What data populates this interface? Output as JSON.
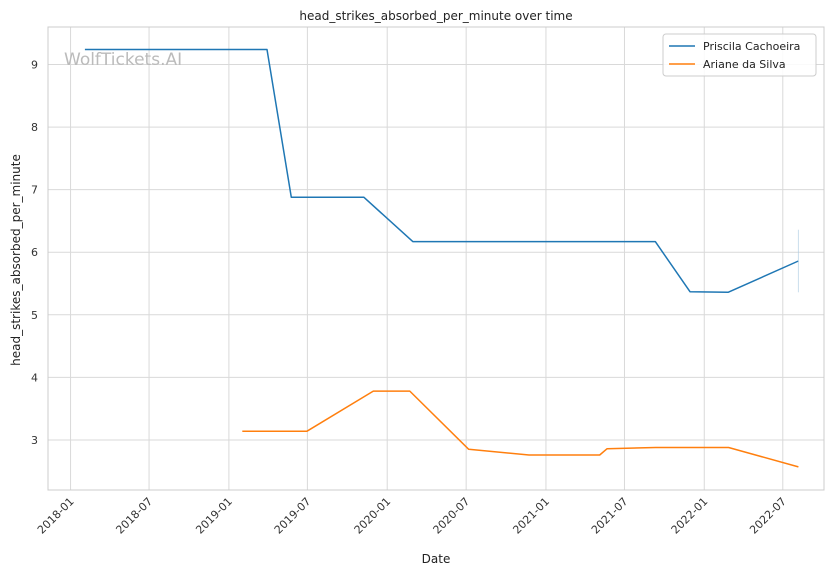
{
  "chart_data": {
    "type": "line",
    "title": "head_strikes_absorbed_per_minute over time",
    "xlabel": "Date",
    "ylabel": "head_strikes_absorbed_per_minute",
    "watermark": "WolfTickets.AI",
    "x_ticks": [
      "2018-01",
      "2018-07",
      "2019-01",
      "2019-07",
      "2020-01",
      "2020-07",
      "2021-01",
      "2021-07",
      "2022-01",
      "2022-07"
    ],
    "y_ticks": [
      3,
      4,
      5,
      6,
      7,
      8,
      9
    ],
    "xlim": [
      "2017-11-10",
      "2022-10-04"
    ],
    "ylim": [
      2.2,
      9.6
    ],
    "grid": true,
    "legend_position": "top-right",
    "series": [
      {
        "name": "Priscila Cachoeira",
        "color": "#1f77b4",
        "points": [
          [
            "2018-02-03",
            9.24
          ],
          [
            "2019-03-30",
            9.24
          ],
          [
            "2019-05-25",
            6.88
          ],
          [
            "2019-11-08",
            6.88
          ],
          [
            "2020-02-29",
            6.17
          ],
          [
            "2021-09-10",
            6.17
          ],
          [
            "2021-11-29",
            5.37
          ],
          [
            "2022-02-25",
            5.36
          ],
          [
            "2022-08-06",
            5.86
          ]
        ]
      },
      {
        "name": "Ariane da Silva",
        "color": "#ff7f0e",
        "points": [
          [
            "2019-02-01",
            3.14
          ],
          [
            "2019-06-30",
            3.14
          ],
          [
            "2019-11-30",
            3.78
          ],
          [
            "2020-02-22",
            3.78
          ],
          [
            "2020-07-07",
            2.85
          ],
          [
            "2020-11-23",
            2.76
          ],
          [
            "2021-05-05",
            2.76
          ],
          [
            "2021-05-22",
            2.86
          ],
          [
            "2021-09-11",
            2.88
          ],
          [
            "2022-02-26",
            2.88
          ],
          [
            "2022-08-06",
            2.57
          ]
        ]
      }
    ]
  }
}
